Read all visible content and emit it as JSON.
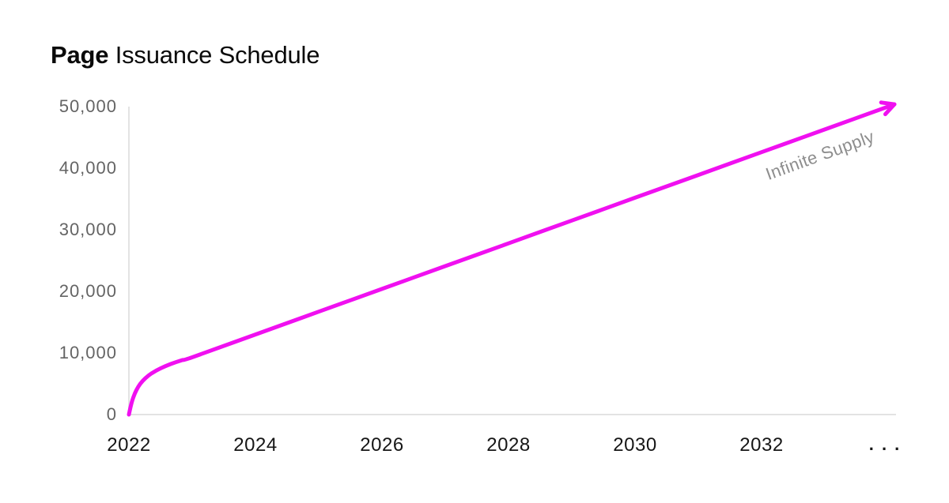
{
  "title": {
    "bold": "Page",
    "rest": " Issuance Schedule"
  },
  "colors": {
    "line": "#F010F0",
    "axis": "#E3E3E3",
    "y_label": "#646464",
    "x_label": "#161616",
    "annotation": "#8D8D8D",
    "title": "#0A0A0A",
    "background": "#FFFFFF"
  },
  "chart_data": {
    "type": "line",
    "title": "Page Issuance Schedule",
    "xlabel": "",
    "ylabel": "",
    "grid": false,
    "legend": false,
    "xlim": [
      2022,
      2034.125
    ],
    "ylim": [
      0,
      50000
    ],
    "x_ticks": [
      {
        "label": "2022",
        "year": 2022
      },
      {
        "label": "2024",
        "year": 2024
      },
      {
        "label": "2026",
        "year": 2026
      },
      {
        "label": "2028",
        "year": 2028
      },
      {
        "label": "2030",
        "year": 2030
      },
      {
        "label": "2032",
        "year": 2032
      },
      {
        "label": ". . .",
        "year": 2033.95
      }
    ],
    "y_ticks": [
      {
        "label": "50,000",
        "value": 50000
      },
      {
        "label": "40,000",
        "value": 40000
      },
      {
        "label": "30,000",
        "value": 30000
      },
      {
        "label": "20,000",
        "value": 20000
      },
      {
        "label": "10,000",
        "value": 10000
      },
      {
        "label": "0",
        "value": 0
      }
    ],
    "series": [
      {
        "color": "#F010F0",
        "arrow_end": true,
        "points": [
          [
            2022.0,
            0
          ],
          [
            2022.03,
            1400
          ],
          [
            2022.07,
            2800
          ],
          [
            2022.12,
            4000
          ],
          [
            2022.18,
            5000
          ],
          [
            2022.26,
            5900
          ],
          [
            2022.36,
            6700
          ],
          [
            2022.5,
            7500
          ],
          [
            2022.66,
            8200
          ],
          [
            2022.83,
            8800
          ],
          [
            2023.0,
            9300
          ],
          [
            2024.0,
            13000
          ],
          [
            2025.0,
            16700
          ],
          [
            2026.0,
            20400
          ],
          [
            2027.0,
            24100
          ],
          [
            2028.0,
            27800
          ],
          [
            2029.0,
            31500
          ],
          [
            2030.0,
            35200
          ],
          [
            2031.0,
            38900
          ],
          [
            2032.0,
            42600
          ],
          [
            2033.0,
            46300
          ],
          [
            2034.1,
            50370
          ]
        ]
      }
    ],
    "annotations": [
      {
        "text": "Infinite Supply",
        "x": 2032.92,
        "y": 42050,
        "rotation_deg": -20
      }
    ]
  }
}
